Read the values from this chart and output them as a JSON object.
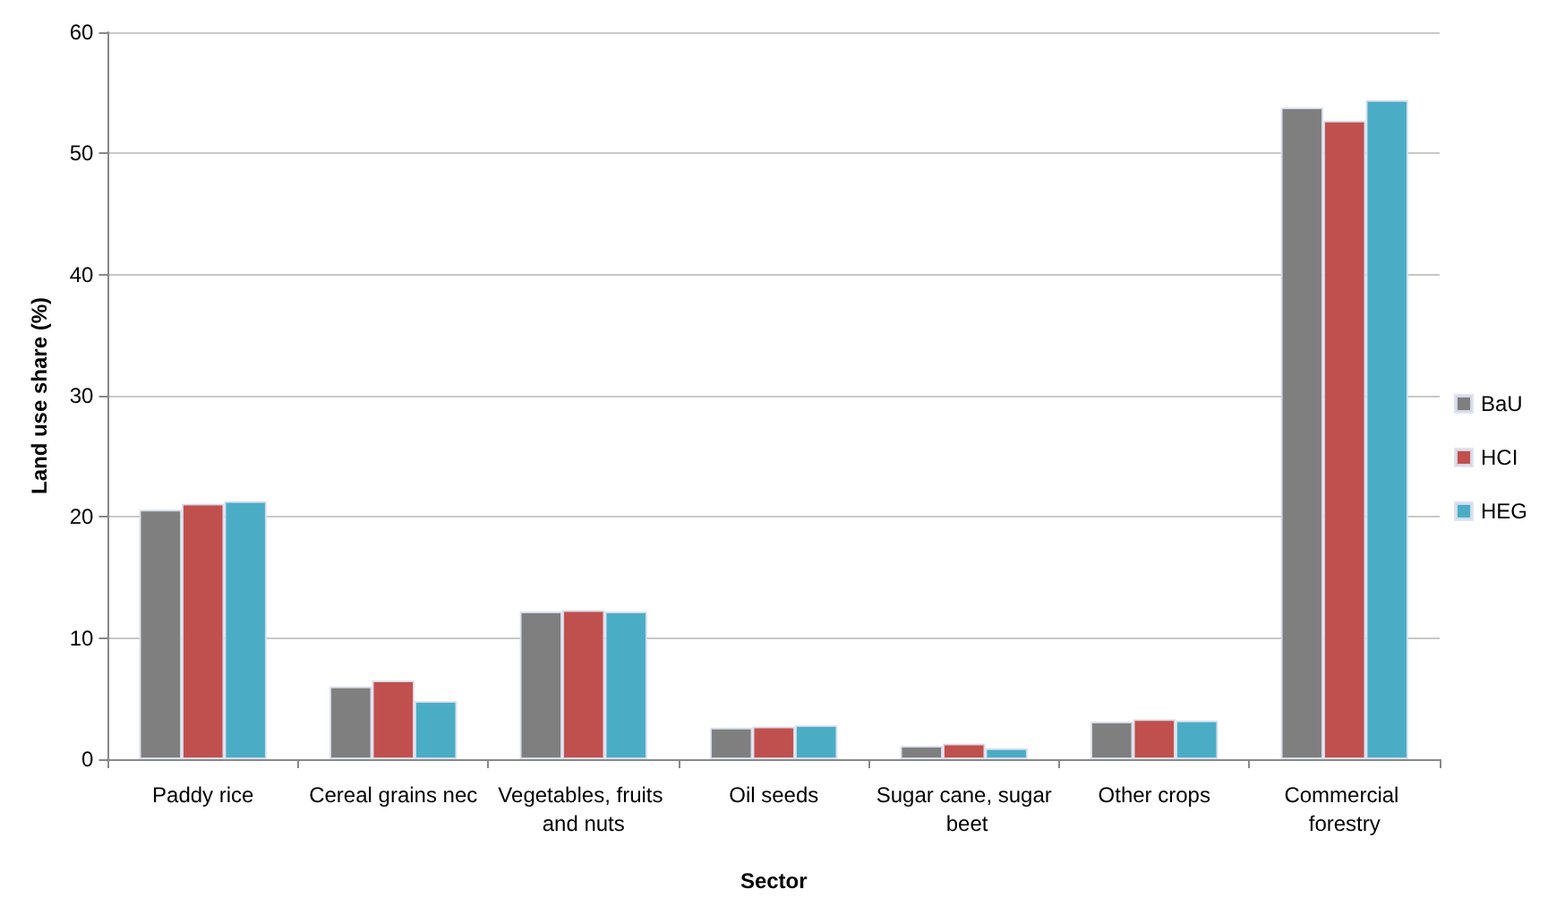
{
  "chart_data": {
    "type": "bar",
    "xlabel": "Sector",
    "ylabel": "Land use share (%)",
    "categories": [
      "Paddy rice",
      "Cereal grains nec",
      "Vegetables, fruits and nuts",
      "Oil seeds",
      "Sugar cane, sugar beet",
      "Other crops",
      "Commercial forestry"
    ],
    "series": [
      {
        "name": "BaU",
        "color": "#7f7f7f",
        "values": [
          20.6,
          6.0,
          12.2,
          2.6,
          1.1,
          3.1,
          53.8
        ]
      },
      {
        "name": "HCI",
        "color": "#c0504d",
        "values": [
          21.1,
          6.5,
          12.3,
          2.7,
          1.3,
          3.3,
          52.7
        ]
      },
      {
        "name": "HEG",
        "color": "#4bacc6",
        "values": [
          21.3,
          4.8,
          12.2,
          2.8,
          0.9,
          3.2,
          54.4
        ]
      }
    ],
    "ylim": [
      0,
      60
    ],
    "yticks": [
      0,
      10,
      20,
      30,
      40,
      50,
      60
    ],
    "grid": "y",
    "legend": "right"
  }
}
